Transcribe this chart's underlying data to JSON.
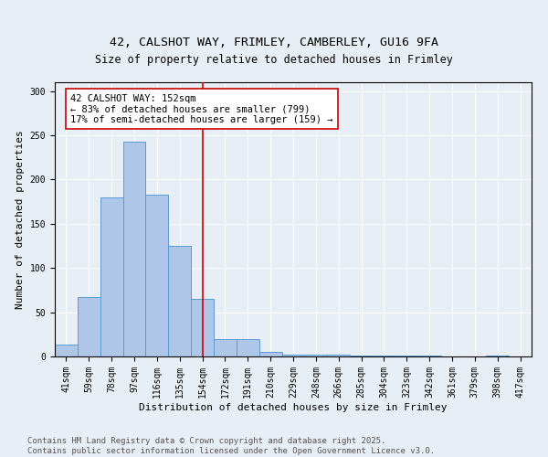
{
  "title_line1": "42, CALSHOT WAY, FRIMLEY, CAMBERLEY, GU16 9FA",
  "title_line2": "Size of property relative to detached houses in Frimley",
  "xlabel": "Distribution of detached houses by size in Frimley",
  "ylabel": "Number of detached properties",
  "footnote": "Contains HM Land Registry data © Crown copyright and database right 2025.\nContains public sector information licensed under the Open Government Licence v3.0.",
  "bin_labels": [
    "41sqm",
    "59sqm",
    "78sqm",
    "97sqm",
    "116sqm",
    "135sqm",
    "154sqm",
    "172sqm",
    "191sqm",
    "210sqm",
    "229sqm",
    "248sqm",
    "266sqm",
    "285sqm",
    "304sqm",
    "323sqm",
    "342sqm",
    "361sqm",
    "379sqm",
    "398sqm",
    "417sqm"
  ],
  "bar_heights": [
    13,
    67,
    180,
    243,
    183,
    125,
    65,
    20,
    20,
    5,
    2,
    2,
    2,
    1,
    1,
    1,
    1,
    0,
    0,
    1,
    0
  ],
  "bar_color": "#aec6e8",
  "bar_edge_color": "#5b9bd5",
  "vline_x": 6.0,
  "vline_color": "#cc0000",
  "annotation_text": "42 CALSHOT WAY: 152sqm\n← 83% of detached houses are smaller (799)\n17% of semi-detached houses are larger (159) →",
  "annotation_box_color": "#cc0000",
  "ylim": [
    0,
    310
  ],
  "yticks": [
    0,
    50,
    100,
    150,
    200,
    250,
    300
  ],
  "background_color": "#e8eef5",
  "plot_bg_color": "#e8eef5",
  "title_fontsize": 9.5,
  "subtitle_fontsize": 8.5,
  "axis_label_fontsize": 8,
  "tick_fontsize": 7,
  "annot_fontsize": 7.5,
  "footnote_fontsize": 6.5
}
